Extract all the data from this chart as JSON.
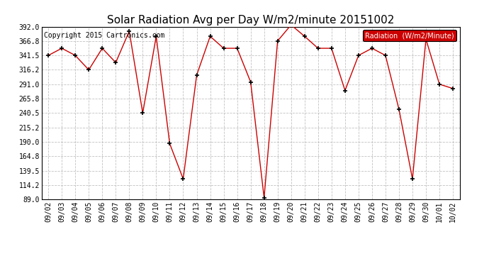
{
  "title": "Solar Radiation Avg per Day W/m2/minute 20151002",
  "copyright": "Copyright 2015 Cartronics.com",
  "legend_label": "Radiation  (W/m2/Minute)",
  "x_labels": [
    "09/02",
    "09/03",
    "09/04",
    "09/05",
    "09/06",
    "09/07",
    "09/08",
    "09/09",
    "09/10",
    "09/11",
    "09/12",
    "09/13",
    "09/14",
    "09/15",
    "09/16",
    "09/17",
    "09/18",
    "09/19",
    "09/20",
    "09/21",
    "09/22",
    "09/23",
    "09/24",
    "09/25",
    "09/26",
    "09/27",
    "09/28",
    "09/29",
    "09/30",
    "10/01",
    "10/02"
  ],
  "y_values": [
    341.5,
    354.0,
    341.5,
    316.2,
    354.0,
    329.0,
    384.0,
    240.5,
    375.0,
    187.0,
    125.0,
    307.0,
    375.0,
    354.0,
    354.0,
    295.0,
    92.0,
    366.8,
    395.0,
    375.0,
    354.0,
    354.0,
    280.0,
    341.5,
    354.0,
    341.5,
    247.0,
    125.0,
    370.0,
    291.0,
    283.5
  ],
  "line_color": "#cc0000",
  "marker_color": "#000000",
  "bg_color": "#ffffff",
  "plot_bg_color": "#ffffff",
  "grid_color": "#bbbbbb",
  "y_min": 89.0,
  "y_max": 392.0,
  "y_ticks": [
    89.0,
    114.2,
    139.5,
    164.8,
    190.0,
    215.2,
    240.5,
    265.8,
    291.0,
    316.2,
    341.5,
    366.8,
    392.0
  ],
  "legend_bg": "#cc0000",
  "legend_text_color": "#ffffff",
  "title_fontsize": 11,
  "axis_fontsize": 7,
  "copyright_fontsize": 7
}
